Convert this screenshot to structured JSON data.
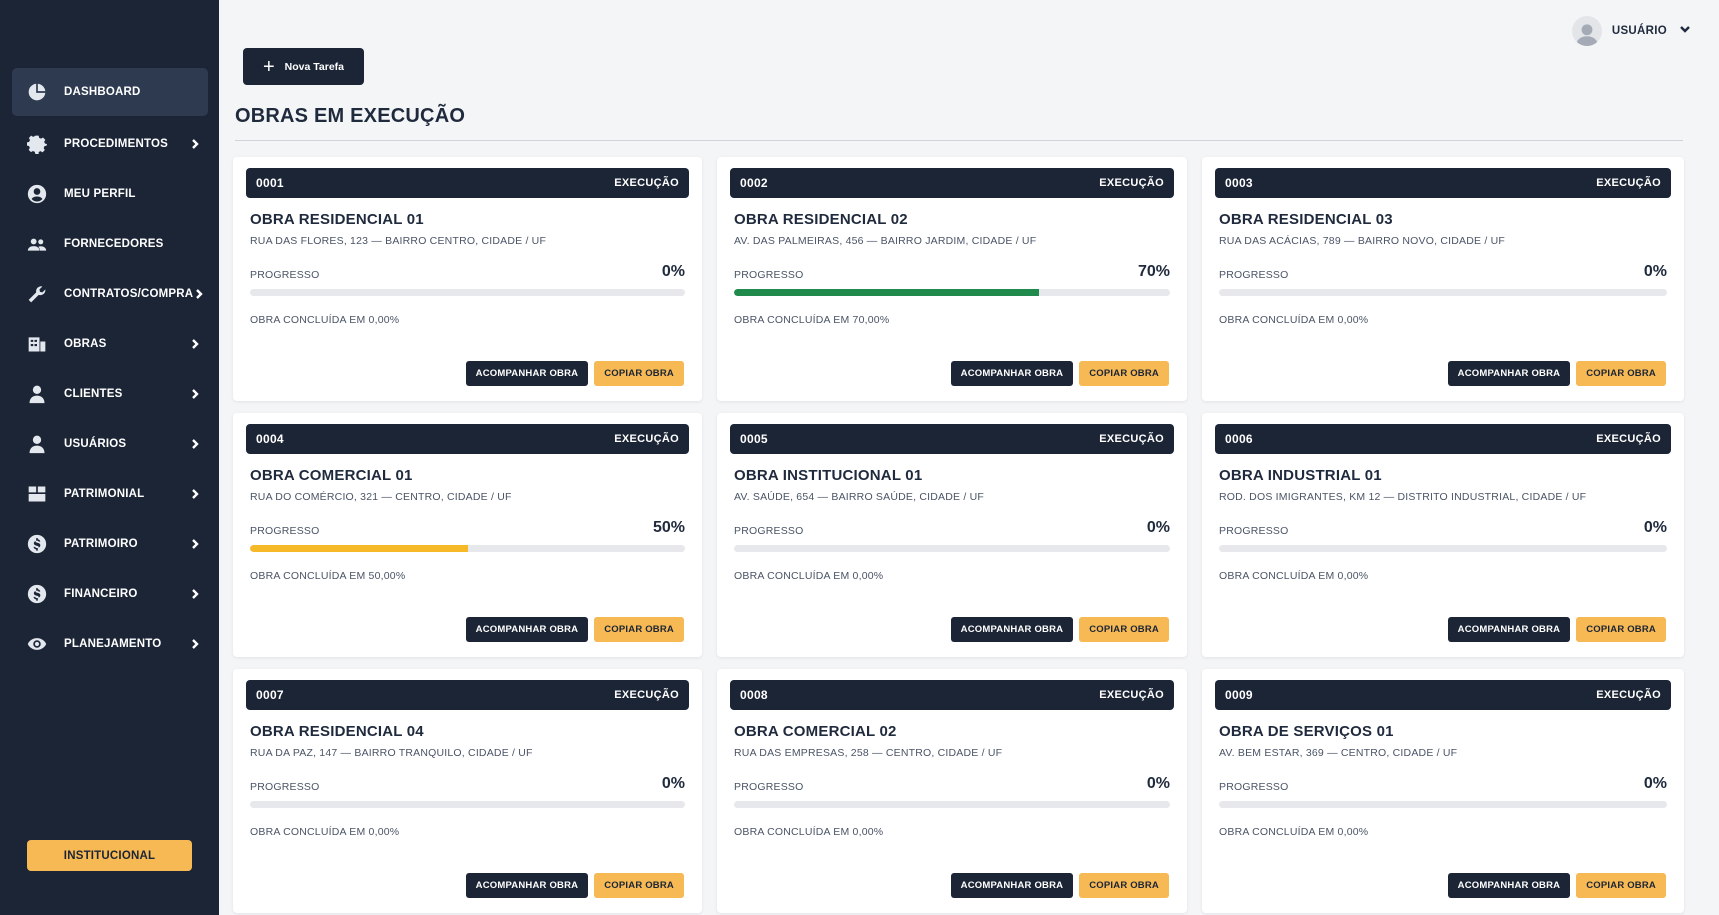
{
  "sidebar": {
    "items": [
      {
        "label": "DASHBOARD",
        "icon": "pie-chart-icon",
        "has_submenu": false,
        "active": true
      },
      {
        "label": "PROCEDIMENTOS",
        "icon": "gear-icon",
        "has_submenu": true,
        "active": false
      },
      {
        "label": "MEU PERFIL",
        "icon": "user-circle-icon",
        "has_submenu": false,
        "active": false
      },
      {
        "label": "FORNECEDORES",
        "icon": "users-icon",
        "has_submenu": false,
        "active": false
      },
      {
        "label": "CONTRATOS/COMPRA",
        "icon": "wrench-icon",
        "has_submenu": true,
        "active": false
      },
      {
        "label": "OBRAS",
        "icon": "building-icon",
        "has_submenu": true,
        "active": false
      },
      {
        "label": "CLIENTES",
        "icon": "person-icon",
        "has_submenu": true,
        "active": false
      },
      {
        "label": "USUÁRIOS",
        "icon": "person-icon",
        "has_submenu": true,
        "active": false
      },
      {
        "label": "PATRIMONIAL",
        "icon": "grid-icon",
        "has_submenu": true,
        "active": false
      },
      {
        "label": "PATRIMOIRO",
        "icon": "dollar-circle-icon",
        "has_submenu": true,
        "active": false
      },
      {
        "label": "FINANCEIRO",
        "icon": "dollar-circle-icon",
        "has_submenu": true,
        "active": false
      },
      {
        "label": "PLANEJAMENTO",
        "icon": "eye-icon",
        "has_submenu": true,
        "active": false
      }
    ],
    "institutional_label": "INSTITUCIONAL"
  },
  "header": {
    "user_label": "USUÁRIO",
    "new_task_label": "Nova Tarefa"
  },
  "main": {
    "title": "OBRAS EM EXECUÇÃO",
    "progress_label": "PROGRESSO",
    "follow_label": "ACOMPANHAR OBRA",
    "copy_label": "COPIAR OBRA",
    "cards": [
      {
        "code": "0001",
        "status": "EXECUÇÃO",
        "name": "OBRA RESIDENCIAL 01",
        "address": "RUA DAS FLORES, 123 — BAIRRO CENTRO, CIDADE / UF",
        "progress": 0,
        "progress_text": "0%",
        "completed_text": "OBRA CONCLUÍDA EM 0,00%",
        "bar_color": "#1f8a4c"
      },
      {
        "code": "0002",
        "status": "EXECUÇÃO",
        "name": "OBRA RESIDENCIAL 02",
        "address": "AV. DAS PALMEIRAS, 456 — BAIRRO JARDIM, CIDADE / UF",
        "progress": 70,
        "progress_text": "70%",
        "completed_text": "OBRA CONCLUÍDA EM 70,00%",
        "bar_color": "#1f8a4c"
      },
      {
        "code": "0003",
        "status": "EXECUÇÃO",
        "name": "OBRA RESIDENCIAL 03",
        "address": "RUA DAS ACÁCIAS, 789 — BAIRRO NOVO, CIDADE / UF",
        "progress": 0,
        "progress_text": "0%",
        "completed_text": "OBRA CONCLUÍDA EM 0,00%",
        "bar_color": "#1f8a4c"
      },
      {
        "code": "0004",
        "status": "EXECUÇÃO",
        "name": "OBRA COMERCIAL 01",
        "address": "RUA DO COMÉRCIO, 321 — CENTRO, CIDADE / UF",
        "progress": 50,
        "progress_text": "50%",
        "completed_text": "OBRA CONCLUÍDA EM 50,00%",
        "bar_color": "#f6b927"
      },
      {
        "code": "0005",
        "status": "EXECUÇÃO",
        "name": "OBRA INSTITUCIONAL 01",
        "address": "AV. SAÚDE, 654 — BAIRRO SAÚDE, CIDADE / UF",
        "progress": 0,
        "progress_text": "0%",
        "completed_text": "OBRA CONCLUÍDA EM 0,00%",
        "bar_color": "#1f8a4c"
      },
      {
        "code": "0006",
        "status": "EXECUÇÃO",
        "name": "OBRA INDUSTRIAL 01",
        "address": "ROD. DOS IMIGRANTES, KM 12 — DISTRITO INDUSTRIAL, CIDADE / UF",
        "progress": 0,
        "progress_text": "0%",
        "completed_text": "OBRA CONCLUÍDA EM 0,00%",
        "bar_color": "#1f8a4c"
      },
      {
        "code": "0007",
        "status": "EXECUÇÃO",
        "name": "OBRA RESIDENCIAL 04",
        "address": "RUA DA PAZ, 147 — BAIRRO TRANQUILO, CIDADE / UF",
        "progress": 0,
        "progress_text": "0%",
        "completed_text": "OBRA CONCLUÍDA EM 0,00%",
        "bar_color": "#1f8a4c"
      },
      {
        "code": "0008",
        "status": "EXECUÇÃO",
        "name": "OBRA COMERCIAL 02",
        "address": "RUA DAS EMPRESAS, 258 — CENTRO, CIDADE / UF",
        "progress": 0,
        "progress_text": "0%",
        "completed_text": "OBRA CONCLUÍDA EM 0,00%",
        "bar_color": "#1f8a4c"
      },
      {
        "code": "0009",
        "status": "EXECUÇÃO",
        "name": "OBRA DE SERVIÇOS 01",
        "address": "AV. BEM ESTAR, 369 — CENTRO, CIDADE / UF",
        "progress": 0,
        "progress_text": "0%",
        "completed_text": "OBRA CONCLUÍDA EM 0,00%",
        "bar_color": "#1f8a4c"
      }
    ]
  }
}
